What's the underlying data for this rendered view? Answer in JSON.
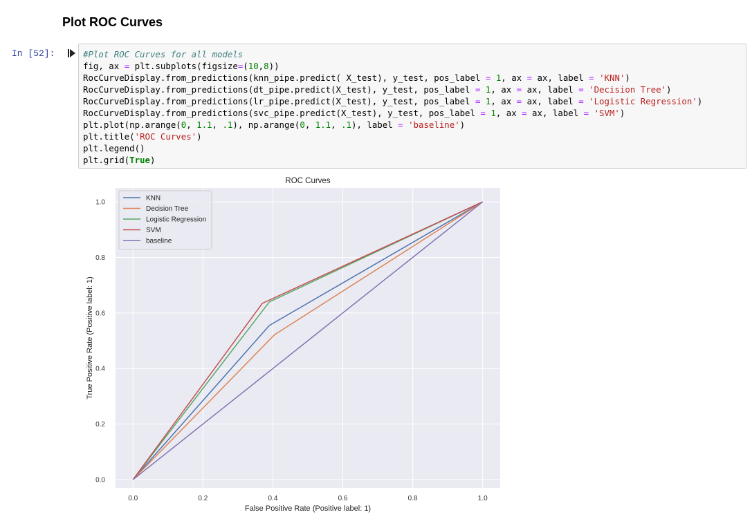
{
  "heading": "Plot ROC Curves",
  "cell": {
    "prompt": "In [52]:"
  },
  "chart_data": {
    "type": "line",
    "title": "ROC Curves",
    "xlabel": "False Positive Rate (Positive label: 1)",
    "ylabel": "True Positive Rate (Positive label: 1)",
    "xlim": [
      -0.05,
      1.05
    ],
    "ylim": [
      -0.03,
      1.05
    ],
    "xticks": [
      0.0,
      0.2,
      0.4,
      0.6,
      0.8,
      1.0
    ],
    "xtick_labels": [
      "0.0",
      "0.2",
      "0.4",
      "0.6",
      "0.8",
      "1.0"
    ],
    "yticks": [
      0.0,
      0.2,
      0.4,
      0.6,
      0.8,
      1.0
    ],
    "ytick_labels": [
      "0.0",
      "0.2",
      "0.4",
      "0.6",
      "0.8",
      "1.0"
    ],
    "grid": true,
    "legend": "top-left",
    "series": [
      {
        "name": "KNN",
        "color": "#4c72b0",
        "x": [
          0,
          0.39,
          1
        ],
        "y": [
          0,
          0.555,
          1
        ]
      },
      {
        "name": "Decision Tree",
        "color": "#dd8452",
        "x": [
          0,
          0.405,
          1
        ],
        "y": [
          0,
          0.522,
          1
        ]
      },
      {
        "name": "Logistic Regression",
        "color": "#55a868",
        "x": [
          0,
          0.39,
          1
        ],
        "y": [
          0,
          0.64,
          1
        ]
      },
      {
        "name": "SVM",
        "color": "#c44e52",
        "x": [
          0,
          0.37,
          1
        ],
        "y": [
          0,
          0.635,
          1
        ]
      },
      {
        "name": "baseline",
        "color": "#8172b3",
        "x": [
          0,
          0.1,
          0.2,
          0.3,
          0.4,
          0.5,
          0.6,
          0.7,
          0.8,
          0.9,
          1.0
        ],
        "y": [
          0,
          0.1,
          0.2,
          0.3,
          0.4,
          0.5,
          0.6,
          0.7,
          0.8,
          0.9,
          1.0
        ]
      }
    ]
  }
}
